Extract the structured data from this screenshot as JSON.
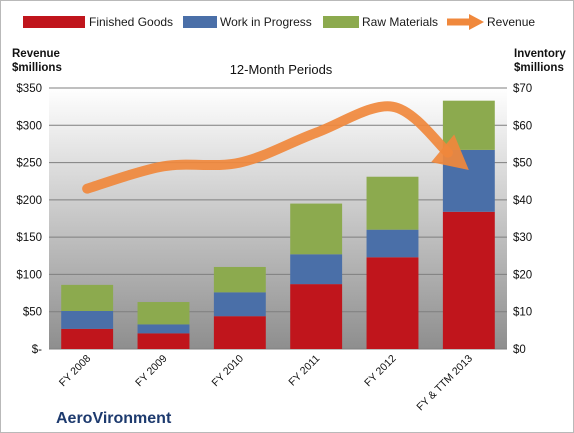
{
  "chart_data": {
    "type": "bar",
    "stacked": true,
    "subtitle": "12-Month Periods",
    "brand": "AeroVironment",
    "categories": [
      "FY 2008",
      "FY 2009",
      "FY 2010",
      "FY 2011",
      "FY 2012",
      "FY & TTM 2013"
    ],
    "series": [
      {
        "name": "Finished Goods",
        "color": "#c0151c",
        "axis": "left",
        "values": [
          27,
          21,
          44,
          87,
          123,
          184
        ]
      },
      {
        "name": "Work in Progress",
        "color": "#4a6fa8",
        "axis": "left",
        "values": [
          24,
          12,
          32,
          40,
          37,
          83
        ]
      },
      {
        "name": "Raw Materials",
        "color": "#8caa4e",
        "axis": "left",
        "values": [
          35,
          30,
          34,
          68,
          71,
          66
        ]
      },
      {
        "name": "Revenue",
        "color": "#f0883c",
        "axis": "right",
        "type": "line",
        "values": [
          43,
          49,
          50,
          58,
          65,
          48
        ]
      }
    ],
    "left_axis": {
      "label_line1": "Revenue",
      "label_line2": "$millions",
      "ylim": [
        0,
        350
      ],
      "ticks": [
        "$-",
        "$50",
        "$100",
        "$150",
        "$200",
        "$250",
        "$300",
        "$350"
      ]
    },
    "right_axis": {
      "label_line1": "Inventory",
      "label_line2": "$millions",
      "ylim": [
        0,
        70
      ],
      "ticks": [
        "$0",
        "$10",
        "$20",
        "$30",
        "$40",
        "$50",
        "$60",
        "$70"
      ]
    },
    "legend_position": "top",
    "grid": true
  }
}
